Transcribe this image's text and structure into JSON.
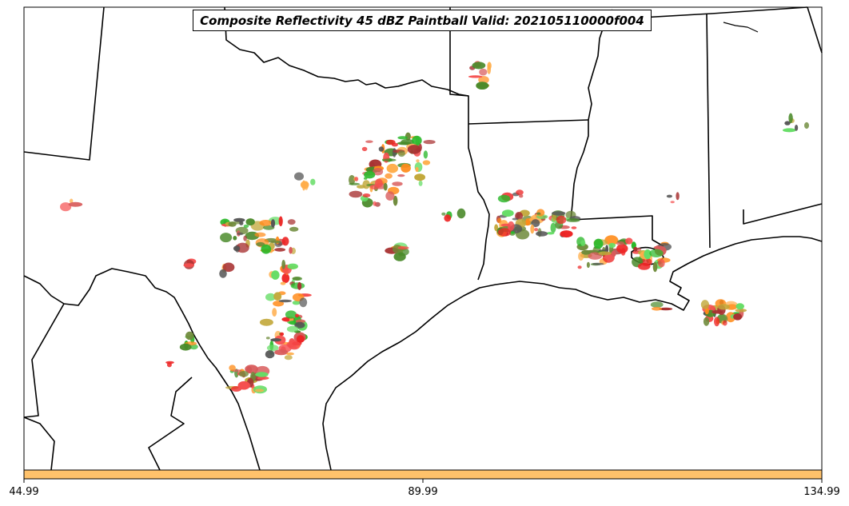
{
  "title": "Composite Reflectivity 45 dBZ Paintball Valid: 202105110000f004",
  "colorbar": {
    "fill_color": "#ffc26b",
    "ticks": [
      "44.99",
      "89.99",
      "134.99"
    ]
  },
  "paintball_colors": [
    "#f54e4e",
    "#29b829",
    "#ff8c1a",
    "#a83232",
    "#4a8a2a",
    "#ffad4a",
    "#c2a83a",
    "#555555",
    "#ed2424",
    "#6e8a3a",
    "#66dd66",
    "#d85a5a"
  ]
}
